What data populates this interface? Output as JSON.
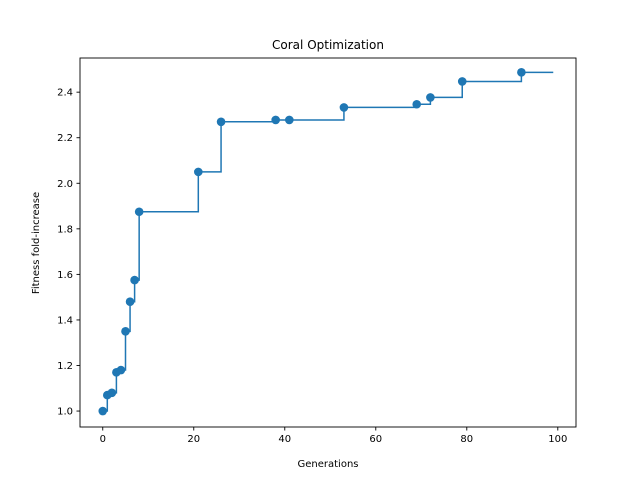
{
  "chart_data": {
    "type": "line",
    "title": "Coral Optimization",
    "xlabel": "Generations",
    "ylabel": "Fitness fold-increase",
    "xlim": [
      -5,
      104
    ],
    "ylim": [
      0.93,
      2.55
    ],
    "xticks": [
      0,
      20,
      40,
      60,
      80,
      100
    ],
    "yticks": [
      1.0,
      1.2,
      1.4,
      1.6,
      1.8,
      2.0,
      2.2,
      2.4
    ],
    "grid": false,
    "legend": "none",
    "line_style": "step-post",
    "colors": {
      "series": "#1f77b4"
    },
    "series": [
      {
        "x": [
          0,
          1,
          2,
          3,
          4,
          5,
          6,
          7,
          8,
          21,
          26,
          38,
          41,
          53,
          69,
          72,
          79,
          92,
          99
        ],
        "y": [
          1.0,
          1.07,
          1.08,
          1.17,
          1.18,
          1.35,
          1.48,
          1.575,
          1.875,
          2.05,
          2.27,
          2.278,
          2.278,
          2.333,
          2.347,
          2.377,
          2.447,
          2.487,
          2.487
        ],
        "markers": [
          true,
          true,
          true,
          true,
          true,
          true,
          true,
          true,
          true,
          true,
          true,
          true,
          true,
          true,
          true,
          true,
          true,
          true,
          false
        ]
      }
    ]
  }
}
